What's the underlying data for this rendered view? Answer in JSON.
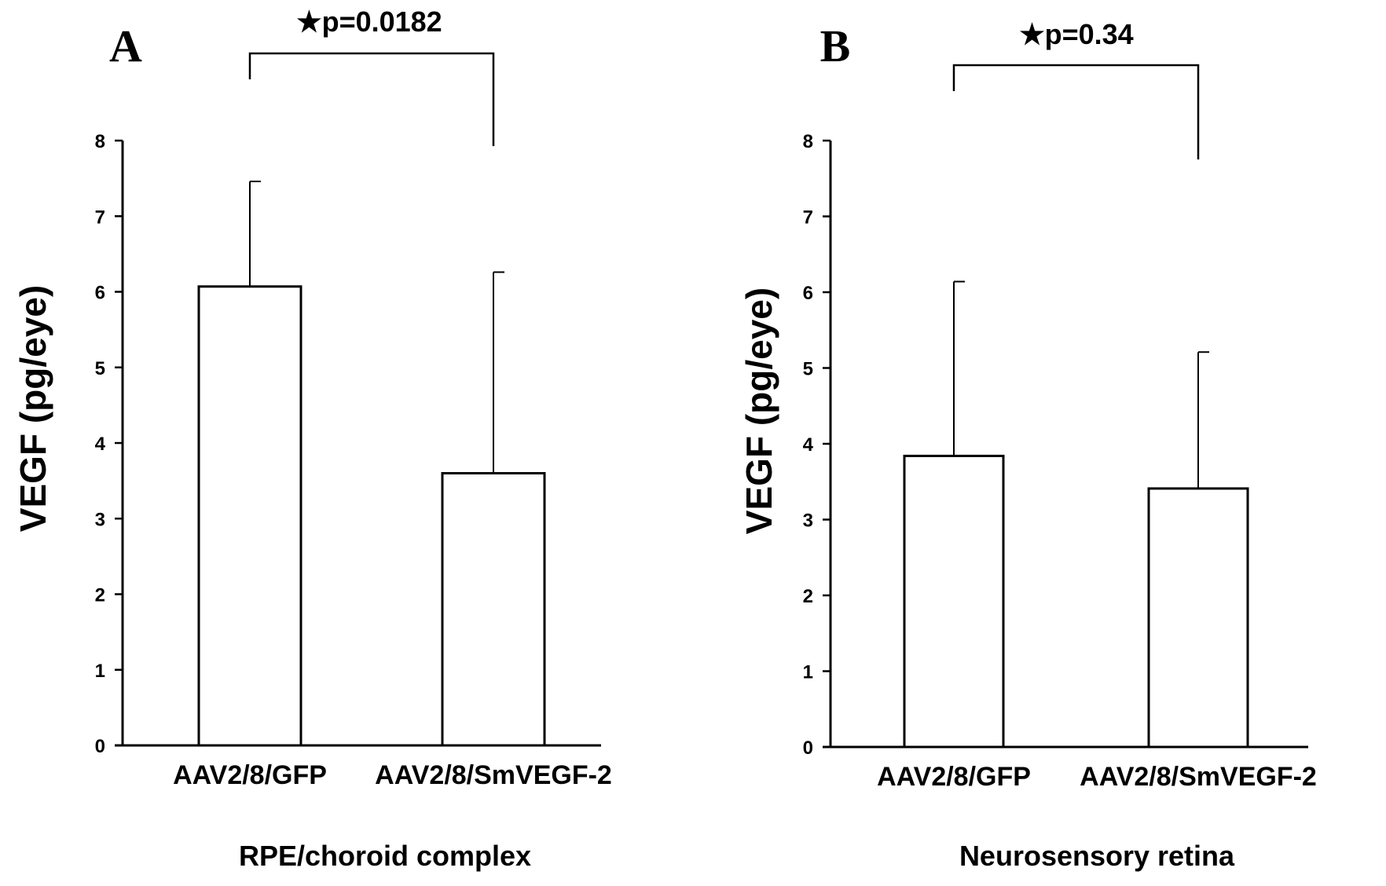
{
  "chart_data": [
    {
      "type": "bar",
      "panel_label": "A",
      "categories": [
        "AAV2/8/GFP",
        "AAV2/8/SmVEGF-2"
      ],
      "values": [
        6.07,
        3.6
      ],
      "error_plus": [
        1.39,
        2.66
      ],
      "ylabel": "VEGF (pg/eye)",
      "xlabel": "RPE/choroid complex",
      "ylim": [
        0,
        8
      ],
      "yticks": [
        "0",
        "1",
        "2",
        "3",
        "4",
        "5",
        "6",
        "7",
        "8"
      ],
      "significance": {
        "star": "★",
        "text": "p=0.0182",
        "between": [
          0,
          1
        ]
      },
      "grid": false,
      "legend": "none",
      "bar_fill": "#ffffff",
      "bar_stroke": "#000000"
    },
    {
      "type": "bar",
      "panel_label": "B",
      "categories": [
        "AAV2/8/GFP",
        "AAV2/8/SmVEGF-2"
      ],
      "values": [
        3.84,
        3.41
      ],
      "error_plus": [
        2.3,
        1.8
      ],
      "ylabel": "VEGF (pg/eye)",
      "xlabel": "Neurosensory retina",
      "ylim": [
        0,
        8
      ],
      "yticks": [
        "0",
        "1",
        "2",
        "3",
        "4",
        "5",
        "6",
        "7",
        "8"
      ],
      "significance": {
        "star": "★",
        "text": "p=0.34",
        "between": [
          0,
          1
        ]
      },
      "grid": false,
      "legend": "none",
      "bar_fill": "#ffffff",
      "bar_stroke": "#000000"
    }
  ]
}
